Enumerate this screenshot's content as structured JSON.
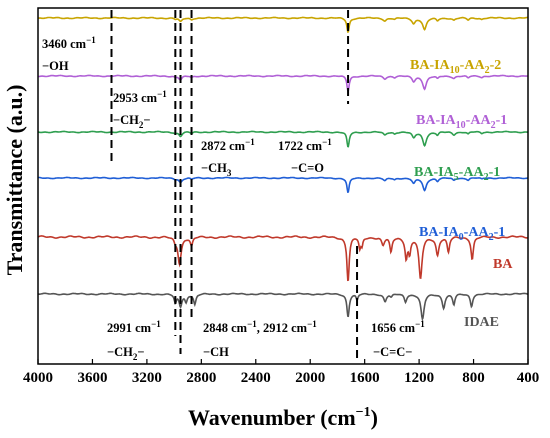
{
  "chart_data": {
    "type": "line",
    "xlabel": "Wavenumber (cm",
    "xlabel_sup": "−1",
    "xlabel_close": ")",
    "ylabel": "Transmittance (a.u.)",
    "xlim": [
      4000,
      400
    ],
    "x_ticks": [
      4000,
      3600,
      3200,
      2800,
      2400,
      2000,
      1600,
      1200,
      800,
      400
    ],
    "x_ticks_labels": [
      "4000",
      "3600",
      "3200",
      "2800",
      "2400",
      "2000",
      "1600",
      "1200",
      "800",
      "400"
    ],
    "grid": false,
    "series": [
      {
        "name": "BA-IA10-AA2-2",
        "name_parts": [
          "BA-IA",
          "10",
          "-AA",
          "2",
          "-2"
        ],
        "color": "#c8a400",
        "baseline": 1.0,
        "peaks": [
          {
            "x": 2991,
            "depth": 0.04,
            "width": 10
          },
          {
            "x": 2953,
            "depth": 0.15,
            "width": 14
          },
          {
            "x": 2872,
            "depth": 0.06,
            "width": 10
          },
          {
            "x": 1722,
            "depth": 0.55,
            "width": 10
          },
          {
            "x": 1452,
            "depth": 0.1,
            "width": 14
          },
          {
            "x": 1380,
            "depth": 0.05,
            "width": 10
          },
          {
            "x": 1240,
            "depth": 0.2,
            "width": 14
          },
          {
            "x": 1160,
            "depth": 0.45,
            "width": 16
          },
          {
            "x": 1065,
            "depth": 0.1,
            "width": 10
          },
          {
            "x": 945,
            "depth": 0.08,
            "width": 12
          },
          {
            "x": 840,
            "depth": 0.08,
            "width": 10
          },
          {
            "x": 740,
            "depth": 0.05,
            "width": 10
          }
        ]
      },
      {
        "name": "BA-IA10-AA2-1",
        "name_parts": [
          "BA-IA",
          "10",
          "-AA",
          "2",
          "-1"
        ],
        "color": "#b060d6",
        "baseline": 1.0,
        "peaks": [
          {
            "x": 2991,
            "depth": 0.04,
            "width": 10
          },
          {
            "x": 2953,
            "depth": 0.16,
            "width": 14
          },
          {
            "x": 2872,
            "depth": 0.06,
            "width": 10
          },
          {
            "x": 1722,
            "depth": 0.58,
            "width": 10
          },
          {
            "x": 1452,
            "depth": 0.1,
            "width": 14
          },
          {
            "x": 1380,
            "depth": 0.05,
            "width": 10
          },
          {
            "x": 1240,
            "depth": 0.2,
            "width": 14
          },
          {
            "x": 1160,
            "depth": 0.48,
            "width": 16
          },
          {
            "x": 1065,
            "depth": 0.1,
            "width": 10
          },
          {
            "x": 945,
            "depth": 0.08,
            "width": 12
          },
          {
            "x": 840,
            "depth": 0.08,
            "width": 10
          },
          {
            "x": 740,
            "depth": 0.05,
            "width": 10
          }
        ]
      },
      {
        "name": "BA-IA5-AA2-1",
        "name_parts": [
          "BA-IA",
          "5",
          "-AA",
          "2",
          "-1"
        ],
        "color": "#2e9e4f",
        "baseline": 1.0,
        "peaks": [
          {
            "x": 2991,
            "depth": 0.04,
            "width": 10
          },
          {
            "x": 2953,
            "depth": 0.16,
            "width": 14
          },
          {
            "x": 2872,
            "depth": 0.06,
            "width": 10
          },
          {
            "x": 1722,
            "depth": 0.6,
            "width": 10
          },
          {
            "x": 1452,
            "depth": 0.12,
            "width": 14
          },
          {
            "x": 1380,
            "depth": 0.06,
            "width": 10
          },
          {
            "x": 1240,
            "depth": 0.22,
            "width": 14
          },
          {
            "x": 1160,
            "depth": 0.5,
            "width": 16
          },
          {
            "x": 1065,
            "depth": 0.12,
            "width": 10
          },
          {
            "x": 945,
            "depth": 0.1,
            "width": 12
          },
          {
            "x": 840,
            "depth": 0.08,
            "width": 10
          },
          {
            "x": 740,
            "depth": 0.05,
            "width": 10
          }
        ]
      },
      {
        "name": "BA-IA0-AA2-1",
        "name_parts": [
          "BA-IA",
          "0",
          "-AA",
          "2",
          "-1"
        ],
        "color": "#1f5ed6",
        "baseline": 1.0,
        "peaks": [
          {
            "x": 2991,
            "depth": 0.04,
            "width": 10
          },
          {
            "x": 2953,
            "depth": 0.18,
            "width": 14
          },
          {
            "x": 2872,
            "depth": 0.06,
            "width": 10
          },
          {
            "x": 1722,
            "depth": 0.62,
            "width": 10
          },
          {
            "x": 1452,
            "depth": 0.12,
            "width": 14
          },
          {
            "x": 1380,
            "depth": 0.06,
            "width": 10
          },
          {
            "x": 1240,
            "depth": 0.22,
            "width": 14
          },
          {
            "x": 1160,
            "depth": 0.52,
            "width": 16
          },
          {
            "x": 1065,
            "depth": 0.12,
            "width": 10
          },
          {
            "x": 945,
            "depth": 0.1,
            "width": 12
          },
          {
            "x": 840,
            "depth": 0.08,
            "width": 10
          },
          {
            "x": 740,
            "depth": 0.05,
            "width": 10
          }
        ]
      },
      {
        "name": "BA",
        "name_parts": [
          "BA"
        ],
        "color": "#c0392b",
        "baseline": 1.0,
        "peaks": [
          {
            "x": 2991,
            "depth": 0.1,
            "width": 10
          },
          {
            "x": 2960,
            "depth": 0.6,
            "width": 14
          },
          {
            "x": 2872,
            "depth": 0.2,
            "width": 10
          },
          {
            "x": 1722,
            "depth": 1.0,
            "width": 10
          },
          {
            "x": 1636,
            "depth": 0.25,
            "width": 8
          },
          {
            "x": 1620,
            "depth": 0.2,
            "width": 8
          },
          {
            "x": 1465,
            "depth": 0.18,
            "width": 12
          },
          {
            "x": 1407,
            "depth": 0.35,
            "width": 10
          },
          {
            "x": 1295,
            "depth": 0.45,
            "width": 10
          },
          {
            "x": 1270,
            "depth": 0.35,
            "width": 10
          },
          {
            "x": 1190,
            "depth": 0.95,
            "width": 14
          },
          {
            "x": 1065,
            "depth": 0.4,
            "width": 12
          },
          {
            "x": 985,
            "depth": 0.35,
            "width": 10
          },
          {
            "x": 810,
            "depth": 0.5,
            "width": 10
          }
        ]
      },
      {
        "name": "IDAE",
        "name_parts": [
          "IDAE"
        ],
        "color": "#555555",
        "baseline": 1.0,
        "peaks": [
          {
            "x": 2991,
            "depth": 0.3,
            "width": 10
          },
          {
            "x": 2953,
            "depth": 0.4,
            "width": 12
          },
          {
            "x": 2912,
            "depth": 0.25,
            "width": 10
          },
          {
            "x": 2848,
            "depth": 0.35,
            "width": 10
          },
          {
            "x": 1722,
            "depth": 0.75,
            "width": 10
          },
          {
            "x": 1656,
            "depth": 0.2,
            "width": 8
          },
          {
            "x": 1450,
            "depth": 0.25,
            "width": 12
          },
          {
            "x": 1405,
            "depth": 0.1,
            "width": 10
          },
          {
            "x": 1300,
            "depth": 0.25,
            "width": 10
          },
          {
            "x": 1175,
            "depth": 0.85,
            "width": 14
          },
          {
            "x": 1020,
            "depth": 0.45,
            "width": 12
          },
          {
            "x": 945,
            "depth": 0.35,
            "width": 10
          },
          {
            "x": 815,
            "depth": 0.4,
            "width": 10
          }
        ]
      }
    ],
    "annotations": [
      {
        "id": "a3460",
        "wavenumber": "3460 cm",
        "sup": "−1",
        "group": "−OH",
        "dashed_x": 3460
      },
      {
        "id": "a2953",
        "wavenumber": "2953 cm",
        "sup": "−1",
        "group": "−CH",
        "group_sub": "2",
        "group_tail": "−",
        "dashed_x": 2953
      },
      {
        "id": "a2872",
        "wavenumber": "2872 cm",
        "sup": "−1",
        "group": "−CH",
        "group_sub": "3",
        "group_tail": "",
        "dashed_x": 2872
      },
      {
        "id": "a1722",
        "wavenumber": "1722 cm",
        "sup": "−1",
        "group": "−C=O",
        "dashed_x": 1722
      },
      {
        "id": "a2991",
        "wavenumber": "2991 cm",
        "sup": "−1",
        "group": "−CH",
        "group_sub": "2",
        "group_tail": "−",
        "dashed_x": 2991
      },
      {
        "id": "a2848",
        "wavenumber": "2848 cm",
        "sup": "−1",
        "wavenumber2": ", 2912 cm",
        "sup2": "−1",
        "group": "−CH",
        "dashed_x": 2912
      },
      {
        "id": "a1656",
        "wavenumber": "1656 cm",
        "sup": "−1",
        "group": "−C=C−",
        "dashed_x": 1656
      }
    ]
  }
}
